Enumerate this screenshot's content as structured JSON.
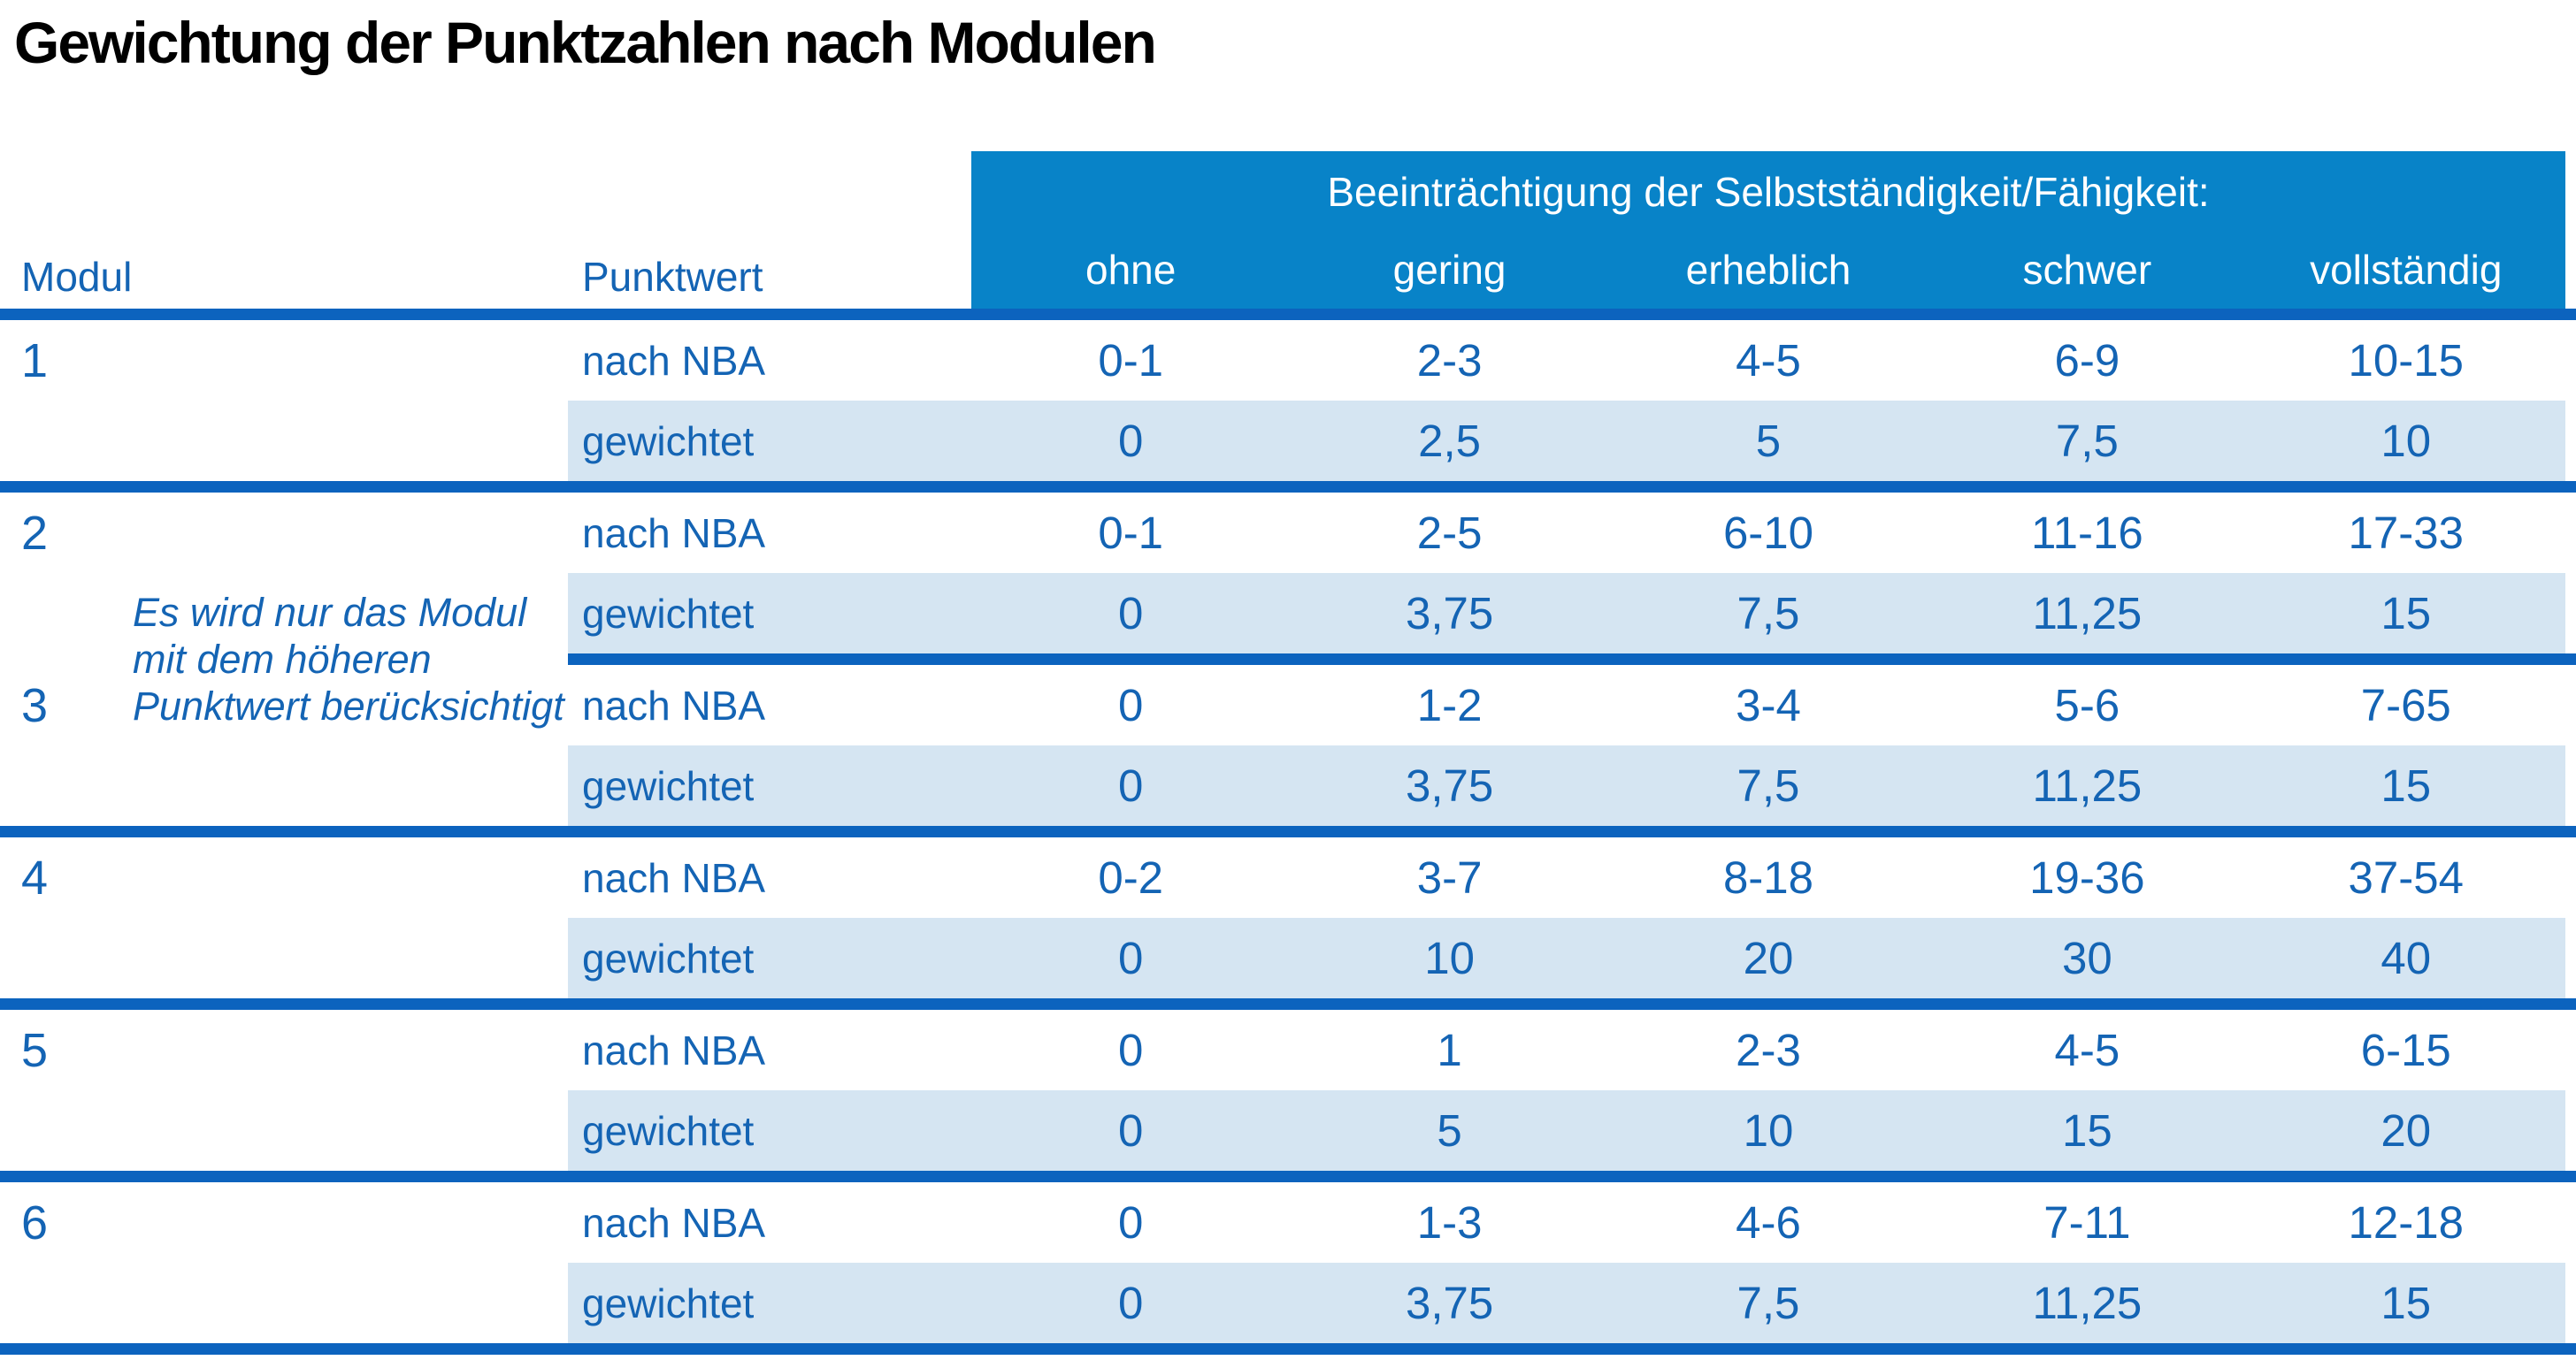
{
  "title": "Gewichtung der Punktzahlen nach Modulen",
  "table": {
    "header": {
      "modul": "Modul",
      "punktwert": "Punktwert",
      "group_label": "Beeinträchtigung der Selbstständigkeit/Fähigkeit:",
      "levels": [
        "ohne",
        "gering",
        "erheblich",
        "schwer",
        "vollständig"
      ]
    },
    "row_labels": {
      "nba": "nach NBA",
      "weighted": "gewichtet"
    },
    "note_lines": [
      "Es wird nur das Modul",
      "mit dem höheren",
      "Punktwert berücksichtigt"
    ],
    "modules": [
      {
        "id": "1",
        "nba": [
          "0-1",
          "2-3",
          "4-5",
          "6-9",
          "10-15"
        ],
        "weighted": [
          "0",
          "2,5",
          "5",
          "7,5",
          "10"
        ]
      },
      {
        "id": "2",
        "nba": [
          "0-1",
          "2-5",
          "6-10",
          "11-16",
          "17-33"
        ],
        "weighted": [
          "0",
          "3,75",
          "7,5",
          "11,25",
          "15"
        ]
      },
      {
        "id": "3",
        "nba": [
          "0",
          "1-2",
          "3-4",
          "5-6",
          "7-65"
        ],
        "weighted": [
          "0",
          "3,75",
          "7,5",
          "11,25",
          "15"
        ]
      },
      {
        "id": "4",
        "nba": [
          "0-2",
          "3-7",
          "8-18",
          "19-36",
          "37-54"
        ],
        "weighted": [
          "0",
          "10",
          "20",
          "30",
          "40"
        ]
      },
      {
        "id": "5",
        "nba": [
          "0",
          "1",
          "2-3",
          "4-5",
          "6-15"
        ],
        "weighted": [
          "0",
          "5",
          "10",
          "15",
          "20"
        ]
      },
      {
        "id": "6",
        "nba": [
          "0",
          "1-3",
          "4-6",
          "7-11",
          "12-18"
        ],
        "weighted": [
          "0",
          "3,75",
          "7,5",
          "11,25",
          "15"
        ]
      }
    ]
  },
  "colors": {
    "header_bg": "#0883C8",
    "divider": "#0C63BE",
    "weighted_row_bg": "#D5E5F2",
    "text_blue": "#1464B4",
    "title_color": "#000000",
    "header_text": "#FFFFFF"
  }
}
